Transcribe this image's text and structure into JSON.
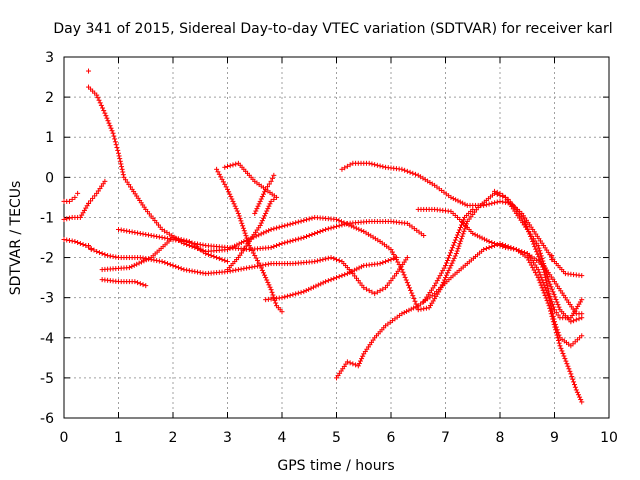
{
  "chart_data": {
    "type": "scatter",
    "title": "Day 341 of 2015, Sidereal Day-to-day VTEC variation (SDTVAR) for receiver karl",
    "xlabel": "GPS time / hours",
    "ylabel": "SDTVAR / TECUs",
    "xlim": [
      0,
      10
    ],
    "ylim": [
      -6,
      3
    ],
    "xticks": [
      "0",
      "1",
      "2",
      "3",
      "4",
      "5",
      "6",
      "7",
      "8",
      "9",
      "10"
    ],
    "yticks": [
      "-6",
      "-5",
      "-4",
      "-3",
      "-2",
      "-1",
      "0",
      "1",
      "2",
      "3"
    ],
    "grid": true,
    "marker": "+",
    "color": "#ff0000",
    "series": [
      {
        "name": "s1",
        "points": [
          [
            0.45,
            2.25
          ],
          [
            0.6,
            2.05
          ],
          [
            0.75,
            1.6
          ],
          [
            0.9,
            1.1
          ],
          [
            1.0,
            0.6
          ],
          [
            1.1,
            0.0
          ],
          [
            1.25,
            -0.3
          ],
          [
            1.5,
            -0.8
          ],
          [
            1.8,
            -1.3
          ],
          [
            2.2,
            -1.65
          ],
          [
            2.6,
            -1.85
          ],
          [
            3.0,
            -1.8
          ],
          [
            3.3,
            -1.6
          ],
          [
            3.8,
            -1.3
          ],
          [
            4.2,
            -1.15
          ],
          [
            4.6,
            -1.0
          ],
          [
            5.0,
            -1.05
          ],
          [
            5.5,
            -1.35
          ],
          [
            5.8,
            -1.6
          ],
          [
            6.0,
            -1.8
          ],
          [
            6.2,
            -2.3
          ],
          [
            6.4,
            -2.95
          ],
          [
            6.5,
            -3.3
          ],
          [
            6.7,
            -3.25
          ],
          [
            6.9,
            -2.8
          ],
          [
            7.2,
            -1.9
          ],
          [
            7.4,
            -1.1
          ],
          [
            7.6,
            -0.75
          ],
          [
            7.9,
            -0.4
          ],
          [
            8.1,
            -0.5
          ],
          [
            8.3,
            -0.9
          ],
          [
            8.5,
            -1.3
          ],
          [
            8.7,
            -1.7
          ],
          [
            8.9,
            -2.6
          ],
          [
            9.1,
            -3.3
          ],
          [
            9.3,
            -3.6
          ],
          [
            9.5,
            -3.5
          ]
        ]
      },
      {
        "name": "s2",
        "points": [
          [
            0.0,
            -1.55
          ],
          [
            0.2,
            -1.6
          ],
          [
            0.4,
            -1.7
          ],
          [
            0.6,
            -1.85
          ],
          [
            0.8,
            -1.95
          ],
          [
            1.0,
            -2.0
          ],
          [
            1.4,
            -2.0
          ],
          [
            1.8,
            -2.1
          ],
          [
            2.2,
            -2.3
          ],
          [
            2.6,
            -2.4
          ],
          [
            3.0,
            -2.35
          ],
          [
            3.4,
            -2.25
          ],
          [
            3.8,
            -2.15
          ],
          [
            4.2,
            -2.15
          ],
          [
            4.6,
            -2.1
          ],
          [
            4.9,
            -2.0
          ],
          [
            5.1,
            -2.1
          ],
          [
            5.3,
            -2.4
          ],
          [
            5.5,
            -2.75
          ],
          [
            5.7,
            -2.9
          ],
          [
            5.9,
            -2.75
          ],
          [
            6.1,
            -2.4
          ],
          [
            6.3,
            -2.0
          ]
        ]
      },
      {
        "name": "s3",
        "points": [
          [
            0.0,
            -0.6
          ],
          [
            0.1,
            -0.6
          ],
          [
            0.2,
            -0.5
          ],
          [
            0.25,
            -0.4
          ]
        ]
      },
      {
        "name": "s4",
        "points": [
          [
            0.0,
            -1.05
          ],
          [
            0.15,
            -1.0
          ],
          [
            0.3,
            -1.0
          ],
          [
            0.45,
            -0.65
          ],
          [
            0.6,
            -0.4
          ],
          [
            0.75,
            -0.1
          ]
        ]
      },
      {
        "name": "s5",
        "points": [
          [
            1.0,
            -1.3
          ],
          [
            1.4,
            -1.4
          ],
          [
            1.8,
            -1.5
          ],
          [
            2.2,
            -1.6
          ],
          [
            2.6,
            -1.7
          ],
          [
            3.0,
            -1.75
          ],
          [
            3.4,
            -1.8
          ],
          [
            3.8,
            -1.75
          ],
          [
            4.0,
            -1.65
          ],
          [
            4.4,
            -1.5
          ],
          [
            4.8,
            -1.3
          ],
          [
            5.2,
            -1.15
          ],
          [
            5.6,
            -1.1
          ],
          [
            6.0,
            -1.1
          ],
          [
            6.3,
            -1.15
          ],
          [
            6.6,
            -1.45
          ]
        ]
      },
      {
        "name": "s6",
        "points": [
          [
            0.7,
            -2.55
          ],
          [
            1.0,
            -2.6
          ],
          [
            1.3,
            -2.6
          ],
          [
            1.5,
            -2.7
          ]
        ]
      },
      {
        "name": "s7",
        "points": [
          [
            0.7,
            -2.3
          ],
          [
            1.2,
            -2.25
          ],
          [
            1.6,
            -2.0
          ],
          [
            2.0,
            -1.5
          ],
          [
            2.3,
            -1.6
          ],
          [
            2.6,
            -1.9
          ],
          [
            2.9,
            -2.05
          ],
          [
            3.0,
            -2.1
          ]
        ]
      },
      {
        "name": "s8",
        "points": [
          [
            2.8,
            0.2
          ],
          [
            3.0,
            -0.3
          ],
          [
            3.2,
            -0.9
          ],
          [
            3.4,
            -1.7
          ],
          [
            3.6,
            -2.2
          ],
          [
            3.8,
            -2.8
          ],
          [
            3.9,
            -3.2
          ],
          [
            4.0,
            -3.35
          ]
        ]
      },
      {
        "name": "s9",
        "points": [
          [
            3.0,
            -2.3
          ],
          [
            3.2,
            -2.0
          ],
          [
            3.4,
            -1.6
          ],
          [
            3.6,
            -1.2
          ],
          [
            3.8,
            -0.6
          ],
          [
            3.9,
            -0.5
          ],
          [
            3.7,
            -0.3
          ],
          [
            3.5,
            -0.1
          ],
          [
            3.2,
            0.35
          ],
          [
            2.95,
            0.25
          ]
        ]
      },
      {
        "name": "s10",
        "points": [
          [
            3.7,
            -3.05
          ],
          [
            4.0,
            -3.0
          ],
          [
            4.4,
            -2.85
          ],
          [
            4.8,
            -2.6
          ],
          [
            5.2,
            -2.4
          ],
          [
            5.5,
            -2.2
          ],
          [
            5.8,
            -2.15
          ],
          [
            6.1,
            -2.0
          ]
        ]
      },
      {
        "name": "s11",
        "points": [
          [
            3.5,
            -0.9
          ],
          [
            3.6,
            -0.6
          ],
          [
            3.7,
            -0.3
          ],
          [
            3.8,
            -0.1
          ],
          [
            3.85,
            0.05
          ]
        ]
      },
      {
        "name": "s12",
        "points": [
          [
            5.1,
            0.2
          ],
          [
            5.3,
            0.35
          ],
          [
            5.6,
            0.35
          ],
          [
            5.9,
            0.25
          ],
          [
            6.2,
            0.2
          ],
          [
            6.5,
            0.05
          ],
          [
            6.8,
            -0.2
          ],
          [
            7.1,
            -0.5
          ],
          [
            7.4,
            -0.7
          ],
          [
            7.7,
            -0.7
          ],
          [
            8.0,
            -0.6
          ],
          [
            8.2,
            -0.65
          ],
          [
            8.4,
            -0.9
          ],
          [
            8.6,
            -1.3
          ],
          [
            8.8,
            -1.7
          ],
          [
            9.0,
            -2.1
          ],
          [
            9.2,
            -2.4
          ],
          [
            9.5,
            -2.45
          ]
        ]
      },
      {
        "name": "s13",
        "points": [
          [
            5.0,
            -5.0
          ],
          [
            5.2,
            -4.6
          ],
          [
            5.4,
            -4.7
          ],
          [
            5.5,
            -4.4
          ],
          [
            5.7,
            -4.0
          ],
          [
            5.9,
            -3.7
          ],
          [
            6.2,
            -3.4
          ],
          [
            6.5,
            -3.2
          ],
          [
            6.8,
            -2.9
          ],
          [
            7.1,
            -2.5
          ],
          [
            7.4,
            -2.15
          ],
          [
            7.7,
            -1.8
          ],
          [
            8.0,
            -1.65
          ],
          [
            8.2,
            -1.75
          ],
          [
            8.5,
            -1.9
          ],
          [
            8.8,
            -2.2
          ],
          [
            9.0,
            -2.6
          ],
          [
            9.2,
            -3.0
          ],
          [
            9.4,
            -3.4
          ],
          [
            9.5,
            -3.4
          ]
        ]
      },
      {
        "name": "s14",
        "points": [
          [
            6.5,
            -0.8
          ],
          [
            6.8,
            -0.8
          ],
          [
            7.1,
            -0.85
          ],
          [
            7.3,
            -1.1
          ],
          [
            7.5,
            -1.4
          ],
          [
            7.8,
            -1.6
          ],
          [
            8.1,
            -1.75
          ],
          [
            8.3,
            -1.8
          ],
          [
            8.5,
            -2.0
          ],
          [
            8.7,
            -2.5
          ],
          [
            8.9,
            -3.2
          ],
          [
            9.1,
            -4.2
          ],
          [
            9.3,
            -4.9
          ],
          [
            9.4,
            -5.3
          ],
          [
            9.5,
            -5.6
          ]
        ]
      },
      {
        "name": "s15",
        "points": [
          [
            6.6,
            -3.1
          ],
          [
            6.8,
            -2.7
          ],
          [
            7.0,
            -2.2
          ],
          [
            7.2,
            -1.5
          ],
          [
            7.35,
            -1.0
          ],
          [
            7.5,
            -0.8
          ]
        ]
      },
      {
        "name": "s16",
        "points": [
          [
            8.5,
            -1.9
          ],
          [
            8.7,
            -2.3
          ],
          [
            8.9,
            -3.0
          ],
          [
            9.0,
            -3.6
          ],
          [
            9.1,
            -4.0
          ],
          [
            9.3,
            -4.2
          ],
          [
            9.5,
            -3.95
          ]
        ]
      },
      {
        "name": "s17",
        "points": [
          [
            7.9,
            -0.35
          ],
          [
            8.0,
            -0.4
          ],
          [
            8.15,
            -0.55
          ],
          [
            8.3,
            -0.8
          ],
          [
            8.45,
            -1.1
          ],
          [
            8.6,
            -1.6
          ],
          [
            8.8,
            -2.3
          ],
          [
            8.9,
            -2.9
          ],
          [
            9.0,
            -3.3
          ],
          [
            9.1,
            -3.5
          ],
          [
            9.3,
            -3.5
          ],
          [
            9.5,
            -3.05
          ]
        ]
      }
    ],
    "stray_points": [
      [
        0.45,
        2.65
      ],
      [
        0.45,
        -0.65
      ],
      [
        0.45,
        -1.7
      ],
      [
        0.5,
        -1.8
      ],
      [
        8.95,
        -1.95
      ],
      [
        8.95,
        -2.05
      ]
    ]
  }
}
